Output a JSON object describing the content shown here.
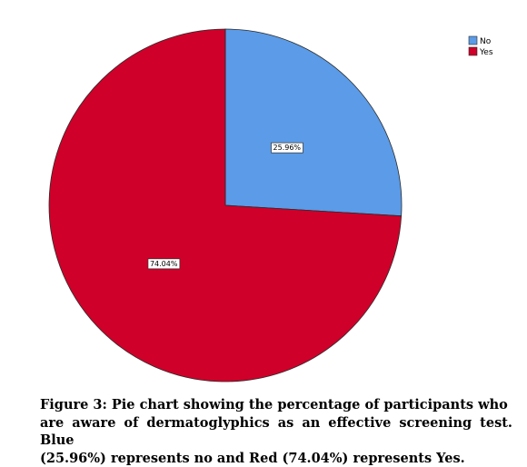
{
  "chart_data": {
    "type": "pie",
    "categories": [
      "No",
      "Yes"
    ],
    "values": [
      25.96,
      74.04
    ],
    "labels": [
      "25.96%",
      "74.04%"
    ],
    "colors": [
      "#5b9be7",
      "#cf0029"
    ],
    "start_angle_deg": 0,
    "direction": "clockwise",
    "legend": {
      "placement": "top-right",
      "entries": [
        "No",
        "Yes"
      ]
    }
  },
  "caption": {
    "lines": [
      "Figure 3: Pie chart showing the percentage of participants who",
      "are aware of dermatoglyphics as an effective screening test. Blue",
      "(25.96%) represents no and Red (74.04%) represents Yes."
    ]
  }
}
